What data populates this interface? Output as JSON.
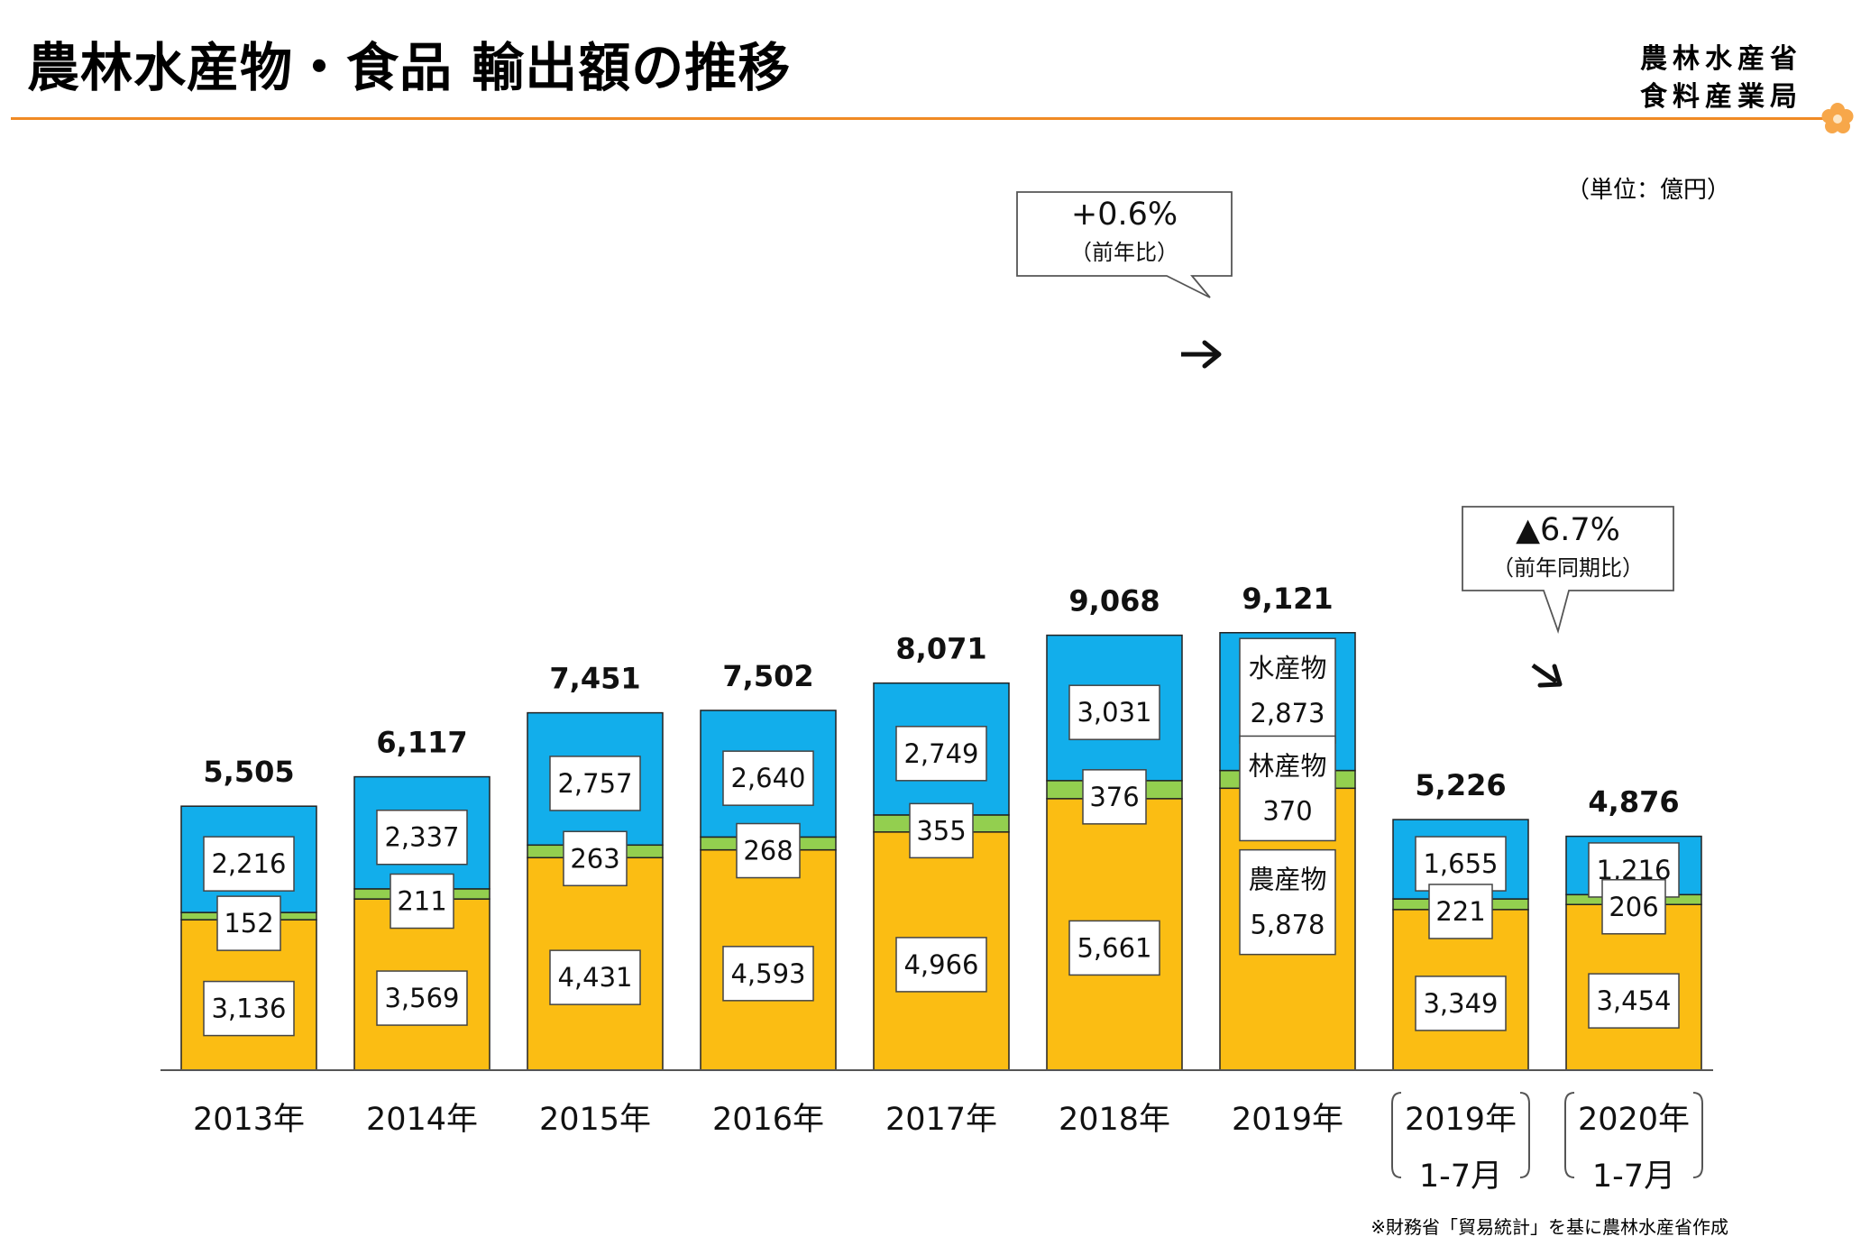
{
  "header": {
    "title": "農林水産物・食品 輸出額の推移",
    "ministry_line1": "農林水産省",
    "ministry_line2": "食料産業局"
  },
  "unit_note": "（単位：億円）",
  "source_note": "※財務省「貿易統計」を基に農林水産省作成",
  "colors": {
    "agriculture": "#fbbd13",
    "forestry": "#93cf4f",
    "fishery": "#12aeeb",
    "accent": "#f08a24"
  },
  "chart_data": {
    "type": "bar",
    "stacked": true,
    "categories": [
      "2013年",
      "2014年",
      "2015年",
      "2016年",
      "2017年",
      "2018年",
      "2019年",
      "2019年",
      "2020年"
    ],
    "category_sublabels": [
      "",
      "",
      "",
      "",
      "",
      "",
      "",
      "1-7月",
      "1-7月"
    ],
    "series": [
      {
        "name": "農産物",
        "values": [
          3136,
          3569,
          4431,
          4593,
          4966,
          5661,
          5878,
          3349,
          3454
        ]
      },
      {
        "name": "林産物",
        "values": [
          152,
          211,
          263,
          268,
          355,
          376,
          370,
          221,
          206
        ]
      },
      {
        "name": "水産物",
        "values": [
          2216,
          2337,
          2757,
          2640,
          2749,
          3031,
          2873,
          1655,
          1216
        ]
      }
    ],
    "totals": [
      5505,
      6117,
      7451,
      7502,
      8071,
      9068,
      9121,
      5226,
      4876
    ],
    "value_labels": {
      "agriculture": [
        "3,136",
        "3,569",
        "4,431",
        "4,593",
        "4,966",
        "5,661",
        "5,878",
        "3,349",
        "3,454"
      ],
      "forestry": [
        "152",
        "211",
        "263",
        "268",
        "355",
        "376",
        "370",
        "221",
        "206"
      ],
      "fishery": [
        "2,216",
        "2,337",
        "2,757",
        "2,640",
        "2,749",
        "3,031",
        "2,873",
        "1,655",
        "1,216"
      ],
      "totals": [
        "5,505",
        "6,117",
        "7,451",
        "7,502",
        "8,071",
        "9,068",
        "9,121",
        "5,226",
        "4,876"
      ]
    },
    "annotations": [
      {
        "text": "+0.6%",
        "subtext": "（前年比）"
      },
      {
        "text": "▲6.7%",
        "subtext": "（前年同期比）"
      }
    ],
    "ylim": [
      0,
      10000
    ]
  }
}
